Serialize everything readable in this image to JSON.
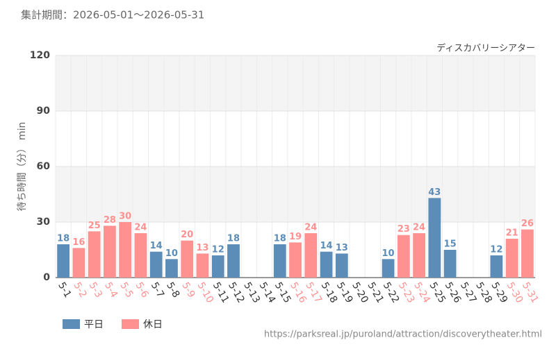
{
  "chart_data": {
    "type": "bar",
    "title": "集計期間：2026-05-01～2026-05-31",
    "subtitle": "ディスカバリーシアター",
    "y_label": "待ち時間（分） min",
    "source": "https://parksreal.jp/puroland/attraction/discoverytheater.html",
    "categories": [
      "5-1",
      "5-2",
      "5-3",
      "5-4",
      "5-5",
      "5-6",
      "5-7",
      "5-8",
      "5-9",
      "5-10",
      "5-11",
      "5-12",
      "5-13",
      "5-14",
      "5-15",
      "5-16",
      "5-17",
      "5-18",
      "5-19",
      "5-20",
      "5-21",
      "5-22",
      "5-23",
      "5-24",
      "5-25",
      "5-26",
      "5-27",
      "5-28",
      "5-29",
      "5-30",
      "5-31"
    ],
    "series": [
      {
        "name": "平日",
        "color": "#5b8db8",
        "values": [
          18,
          null,
          null,
          null,
          null,
          null,
          14,
          10,
          null,
          null,
          12,
          18,
          null,
          null,
          18,
          null,
          null,
          14,
          13,
          null,
          null,
          10,
          null,
          null,
          43,
          15,
          null,
          null,
          12,
          null,
          null
        ]
      },
      {
        "name": "休日",
        "color": "#ff9191",
        "values": [
          null,
          16,
          25,
          28,
          30,
          24,
          null,
          null,
          20,
          13,
          null,
          null,
          null,
          null,
          null,
          19,
          24,
          null,
          null,
          null,
          null,
          null,
          23,
          24,
          null,
          null,
          null,
          null,
          null,
          21,
          26
        ]
      }
    ],
    "ylim": [
      0,
      120
    ],
    "yticks": [
      0,
      30,
      60,
      90,
      120
    ],
    "grid": true
  }
}
